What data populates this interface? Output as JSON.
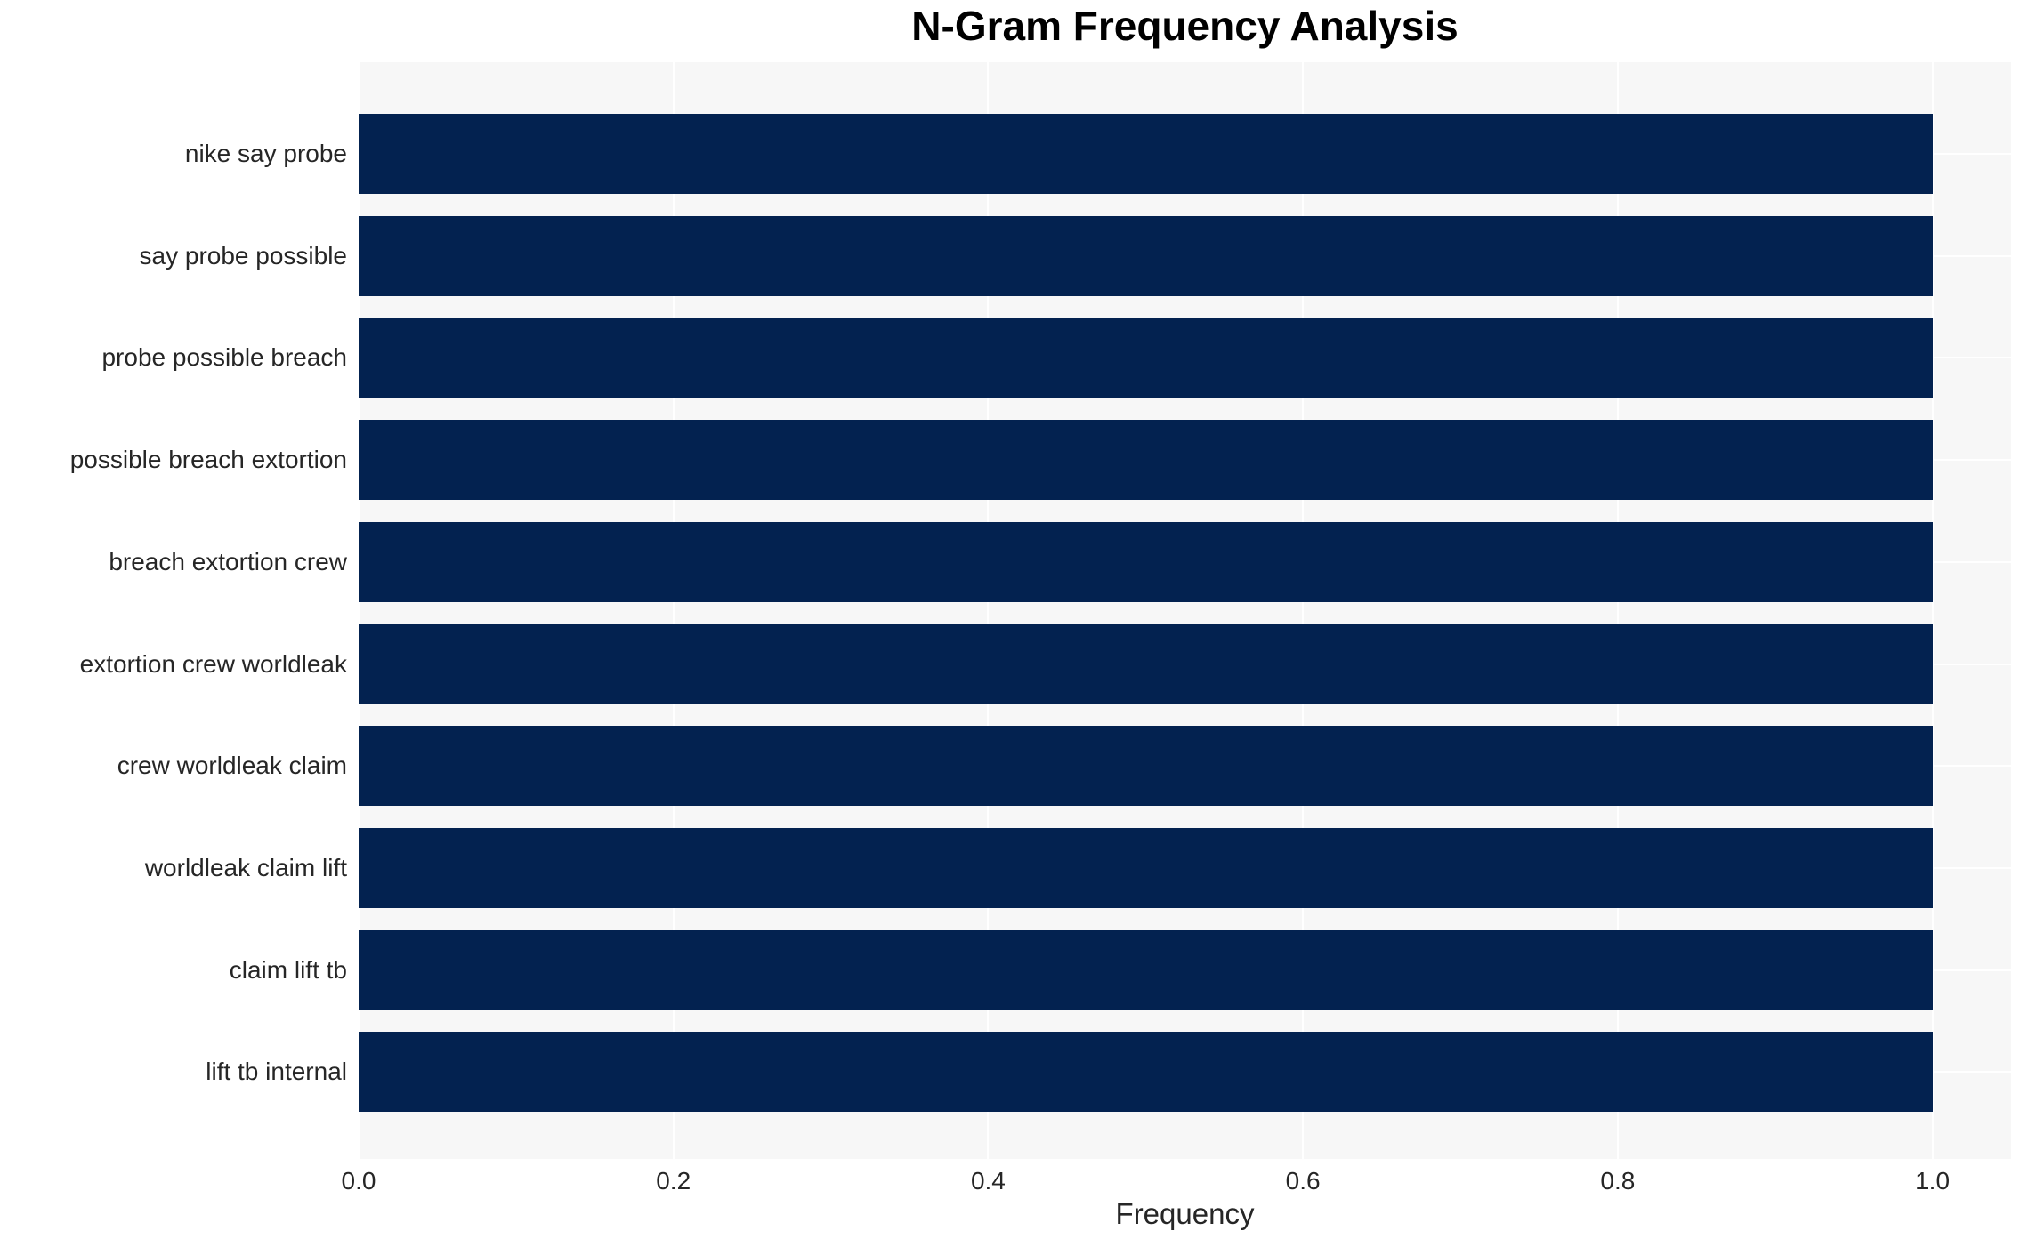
{
  "chart_data": {
    "type": "bar",
    "orientation": "horizontal",
    "title": "N-Gram Frequency Analysis",
    "xlabel": "Frequency",
    "ylabel": "",
    "categories": [
      "nike say probe",
      "say probe possible",
      "probe possible breach",
      "possible breach extortion",
      "breach extortion crew",
      "extortion crew worldleak",
      "crew worldleak claim",
      "worldleak claim lift",
      "claim lift tb",
      "lift tb internal"
    ],
    "values": [
      1.0,
      1.0,
      1.0,
      1.0,
      1.0,
      1.0,
      1.0,
      1.0,
      1.0,
      1.0
    ],
    "xlim": [
      0,
      1.05
    ],
    "xticks": [
      "0.0",
      "0.2",
      "0.4",
      "0.6",
      "0.8",
      "1.0"
    ],
    "xtick_values": [
      0.0,
      0.2,
      0.4,
      0.6,
      0.8,
      1.0
    ],
    "grid": true,
    "legend": false,
    "colors": {
      "bar": "#032250",
      "plot_background": "#f7f7f7",
      "grid": "#ffffff",
      "text": "#262626",
      "title": "#000000"
    }
  }
}
